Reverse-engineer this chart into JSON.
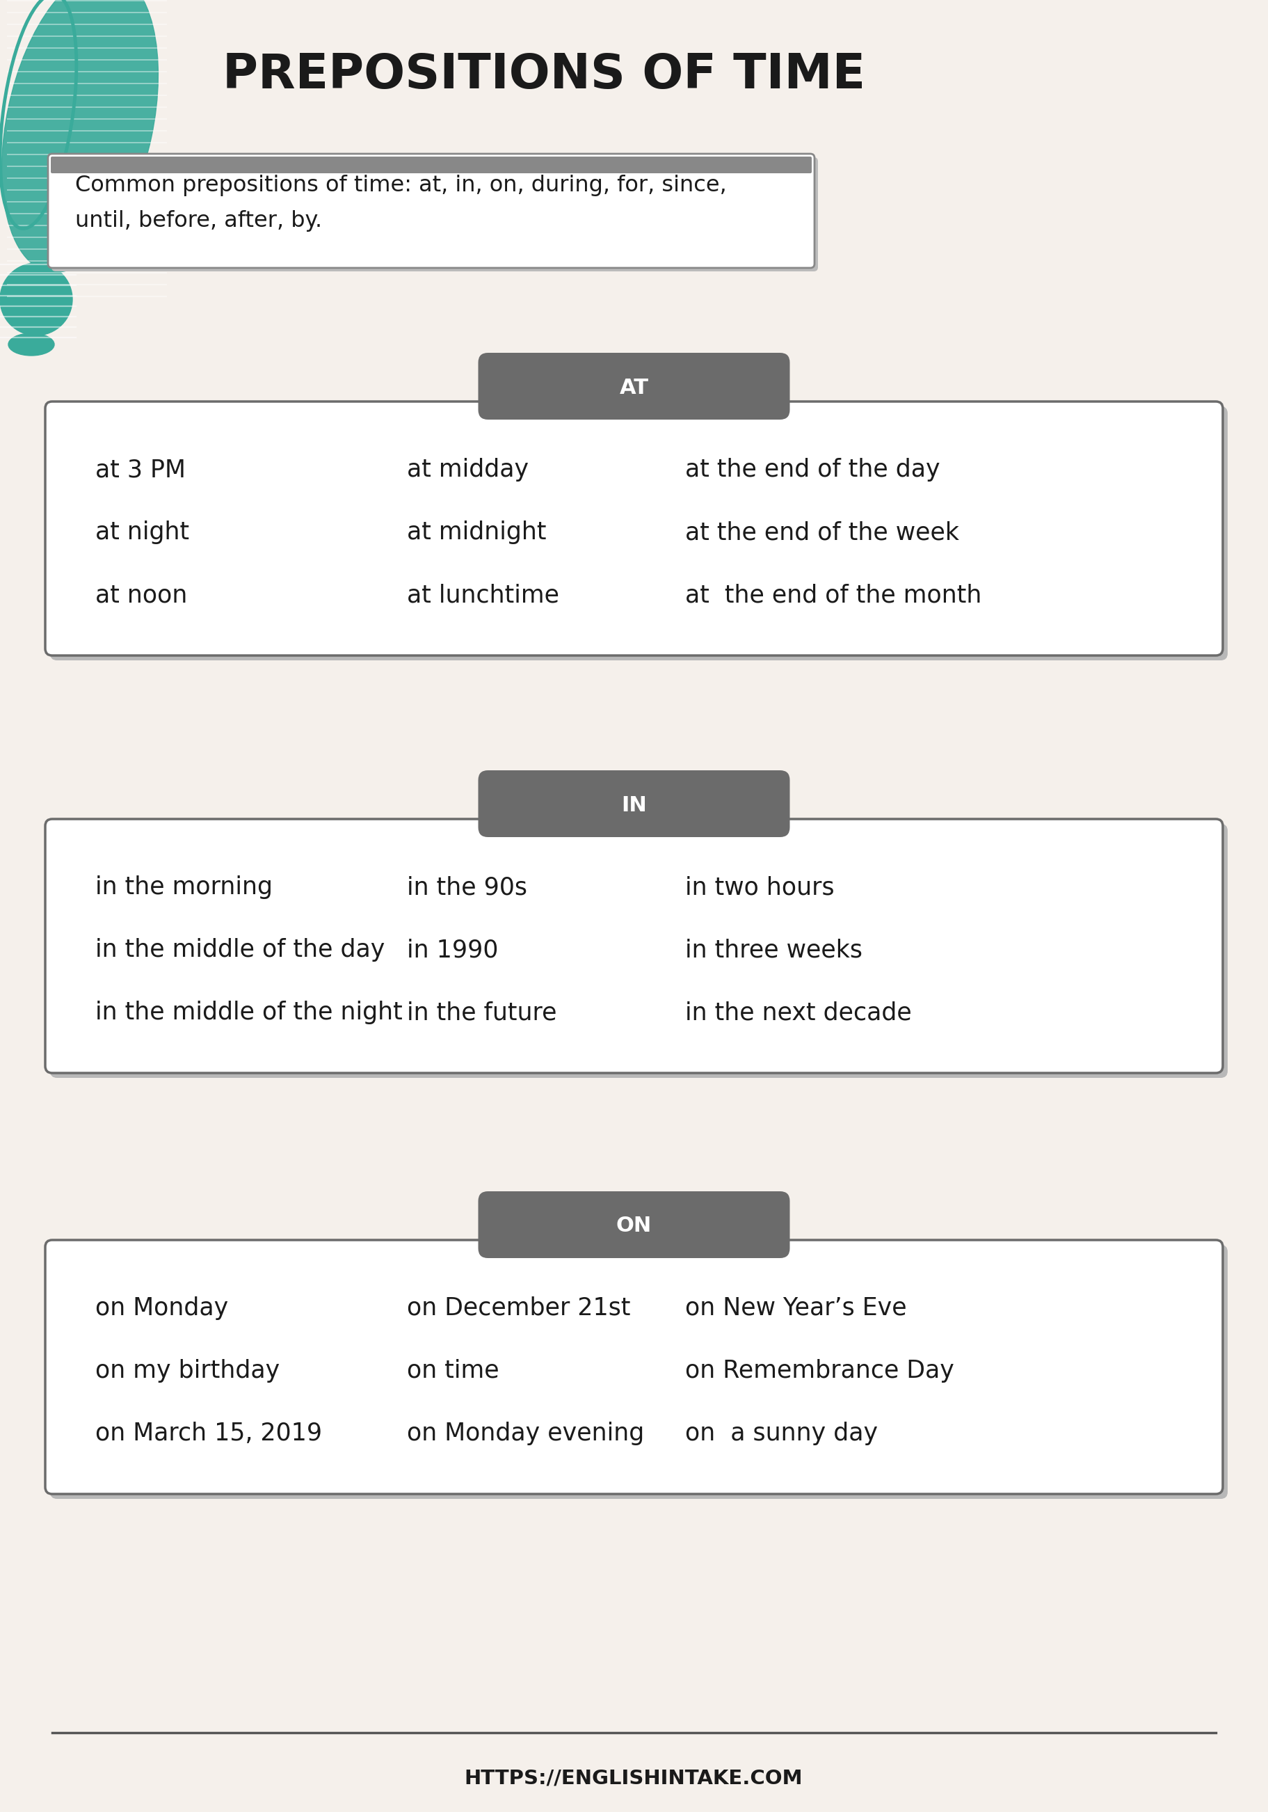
{
  "title": "PREPOSITIONS OF TIME",
  "subtitle": "Common prepositions of time: at, in, on, during, for, since,\nuntil, before, after, by.",
  "background_color": "#f5f0eb",
  "title_color": "#1a1a1a",
  "section_label_color": "#ffffff",
  "section_bg_color": "#6b6b6b",
  "box_bg_color": "#ffffff",
  "box_border_color": "#6b6b6b",
  "text_color": "#1a1a1a",
  "footer_text": "HTTPS://ENGLISHINTAKE.COM",
  "footer_color": "#1a1a1a",
  "teal_color": "#3aab9b",
  "sections": [
    {
      "label": "AT",
      "col1": [
        "at 3 PM",
        "at night",
        "at noon"
      ],
      "col2": [
        "at midday",
        "at midnight",
        "at lunchtime"
      ],
      "col3": [
        "at the end of the day",
        "at the end of the week",
        "at  the end of the month"
      ]
    },
    {
      "label": "IN",
      "col1": [
        "in the morning",
        "in the middle of the day",
        "in the middle of the night"
      ],
      "col2": [
        "in the 90s",
        "in 1990",
        "in the future"
      ],
      "col3": [
        "in two hours",
        "in three weeks",
        "in the next decade"
      ]
    },
    {
      "label": "ON",
      "col1": [
        "on Monday",
        "on my birthday",
        "on March 15, 2019"
      ],
      "col2": [
        "on December 21st",
        "on time",
        "on Monday evening"
      ],
      "col3": [
        "on New Year’s Eve",
        "on Remembrance Day",
        "on  a sunny day"
      ]
    }
  ]
}
